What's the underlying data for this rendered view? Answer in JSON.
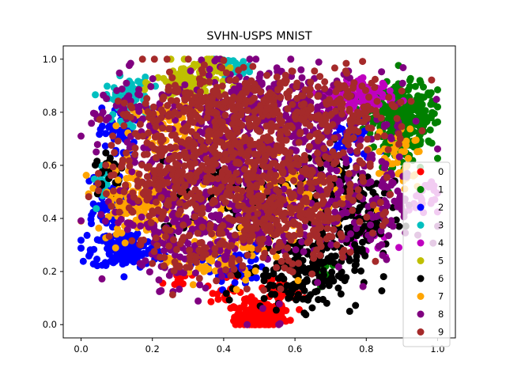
{
  "chart_data": {
    "type": "scatter",
    "title": "SVHN-USPS MNIST",
    "xlabel": "",
    "ylabel": "",
    "xlim": [
      -0.05,
      1.05
    ],
    "ylim": [
      -0.05,
      1.05
    ],
    "xticks": [
      "0.0",
      "0.2",
      "0.4",
      "0.6",
      "0.8",
      "1.0"
    ],
    "xtick_values": [
      0.0,
      0.2,
      0.4,
      0.6,
      0.8,
      1.0
    ],
    "yticks": [
      "0.0",
      "0.2",
      "0.4",
      "0.6",
      "0.8",
      "1.0"
    ],
    "ytick_values": [
      0.0,
      0.2,
      0.4,
      0.6,
      0.8,
      1.0
    ],
    "grid": false,
    "legend_position": "center-right",
    "series": [
      {
        "name": "0",
        "color": "#ff0000",
        "clusters": [
          [
            0.5,
            0.03,
            0.035,
            0.03,
            140
          ],
          [
            0.56,
            0.12,
            0.03,
            0.05,
            50
          ],
          [
            0.41,
            0.11,
            0.03,
            0.03,
            20
          ],
          [
            0.27,
            0.17,
            0.02,
            0.02,
            10
          ]
        ]
      },
      {
        "name": "1",
        "color": "#008000",
        "clusters": [
          [
            0.91,
            0.78,
            0.045,
            0.06,
            260
          ],
          [
            0.84,
            0.82,
            0.03,
            0.04,
            40
          ],
          [
            0.88,
            0.66,
            0.03,
            0.04,
            40
          ],
          [
            0.66,
            0.21,
            0.02,
            0.03,
            10
          ]
        ]
      },
      {
        "name": "2",
        "color": "#0000ff",
        "clusters": [
          [
            0.13,
            0.28,
            0.05,
            0.035,
            150
          ],
          [
            0.06,
            0.45,
            0.03,
            0.06,
            60
          ],
          [
            0.1,
            0.72,
            0.025,
            0.05,
            40
          ],
          [
            0.42,
            0.22,
            0.05,
            0.04,
            60
          ],
          [
            0.75,
            0.7,
            0.04,
            0.05,
            40
          ]
        ]
      },
      {
        "name": "3",
        "color": "#00bfbf",
        "clusters": [
          [
            0.13,
            0.85,
            0.03,
            0.04,
            80
          ],
          [
            0.42,
            0.97,
            0.03,
            0.015,
            40
          ],
          [
            0.07,
            0.55,
            0.02,
            0.04,
            20
          ]
        ]
      },
      {
        "name": "4",
        "color": "#bf00bf",
        "clusters": [
          [
            0.8,
            0.87,
            0.04,
            0.025,
            70
          ],
          [
            0.73,
            0.85,
            0.05,
            0.025,
            40
          ],
          [
            0.96,
            0.48,
            0.02,
            0.04,
            25
          ],
          [
            0.81,
            0.32,
            0.03,
            0.04,
            20
          ]
        ]
      },
      {
        "name": "5",
        "color": "#bfbf00",
        "clusters": [
          [
            0.31,
            0.91,
            0.05,
            0.04,
            110
          ],
          [
            0.35,
            0.97,
            0.03,
            0.015,
            30
          ]
        ]
      },
      {
        "name": "6",
        "color": "#000000",
        "clusters": [
          [
            0.62,
            0.2,
            0.08,
            0.07,
            190
          ],
          [
            0.78,
            0.4,
            0.05,
            0.07,
            110
          ],
          [
            0.68,
            0.55,
            0.07,
            0.07,
            80
          ],
          [
            0.08,
            0.58,
            0.02,
            0.04,
            25
          ],
          [
            0.42,
            0.48,
            0.1,
            0.07,
            70
          ]
        ]
      },
      {
        "name": "7",
        "color": "#ffa500",
        "clusters": [
          [
            0.16,
            0.47,
            0.06,
            0.06,
            160
          ],
          [
            0.27,
            0.73,
            0.07,
            0.06,
            90
          ],
          [
            0.45,
            0.37,
            0.07,
            0.08,
            110
          ],
          [
            0.6,
            0.5,
            0.07,
            0.07,
            70
          ],
          [
            0.88,
            0.62,
            0.04,
            0.06,
            50
          ],
          [
            0.34,
            0.24,
            0.05,
            0.04,
            40
          ]
        ]
      },
      {
        "name": "8",
        "color": "#800080",
        "clusters": [
          [
            0.45,
            0.55,
            0.17,
            0.18,
            520
          ],
          [
            0.55,
            0.8,
            0.15,
            0.08,
            260
          ],
          [
            0.3,
            0.35,
            0.1,
            0.09,
            140
          ],
          [
            0.82,
            0.48,
            0.07,
            0.12,
            110
          ],
          [
            0.13,
            0.82,
            0.05,
            0.06,
            40
          ]
        ]
      },
      {
        "name": "9",
        "color": "#a52a2a",
        "clusters": [
          [
            0.48,
            0.6,
            0.16,
            0.16,
            560
          ],
          [
            0.38,
            0.8,
            0.14,
            0.08,
            240
          ],
          [
            0.6,
            0.4,
            0.12,
            0.08,
            140
          ],
          [
            0.2,
            0.58,
            0.07,
            0.09,
            110
          ],
          [
            0.76,
            0.8,
            0.09,
            0.07,
            110
          ],
          [
            0.32,
            0.28,
            0.08,
            0.06,
            60
          ]
        ]
      }
    ],
    "cluster_format": [
      "x_center",
      "y_center",
      "x_spread",
      "y_spread",
      "approx_points"
    ]
  }
}
